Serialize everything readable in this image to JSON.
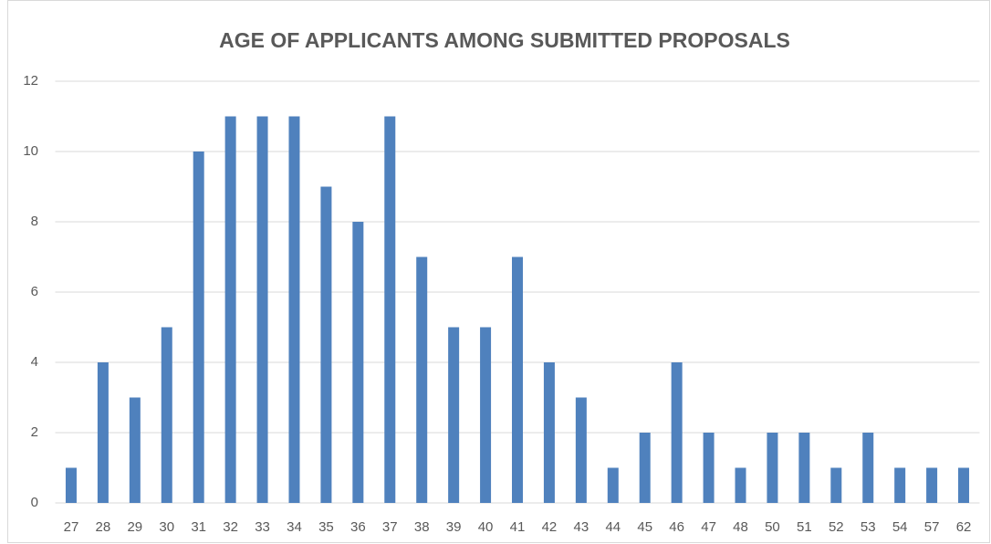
{
  "chart_data": {
    "type": "bar",
    "title": "AGE OF APPLICANTS AMONG SUBMITTED PROPOSALS",
    "categories": [
      "27",
      "28",
      "29",
      "30",
      "31",
      "32",
      "33",
      "34",
      "35",
      "36",
      "37",
      "38",
      "39",
      "40",
      "41",
      "42",
      "43",
      "44",
      "45",
      "46",
      "47",
      "48",
      "50",
      "51",
      "52",
      "53",
      "54",
      "57",
      "62"
    ],
    "values": [
      1,
      4,
      3,
      5,
      10,
      11,
      11,
      11,
      9,
      8,
      11,
      7,
      5,
      5,
      7,
      4,
      3,
      1,
      2,
      4,
      2,
      1,
      2,
      2,
      1,
      2,
      1,
      1,
      1
    ],
    "color": "#4f81bd",
    "ylim": [
      0,
      12
    ],
    "yticks": [
      0,
      2,
      4,
      6,
      8,
      10,
      12
    ],
    "grid": true
  }
}
